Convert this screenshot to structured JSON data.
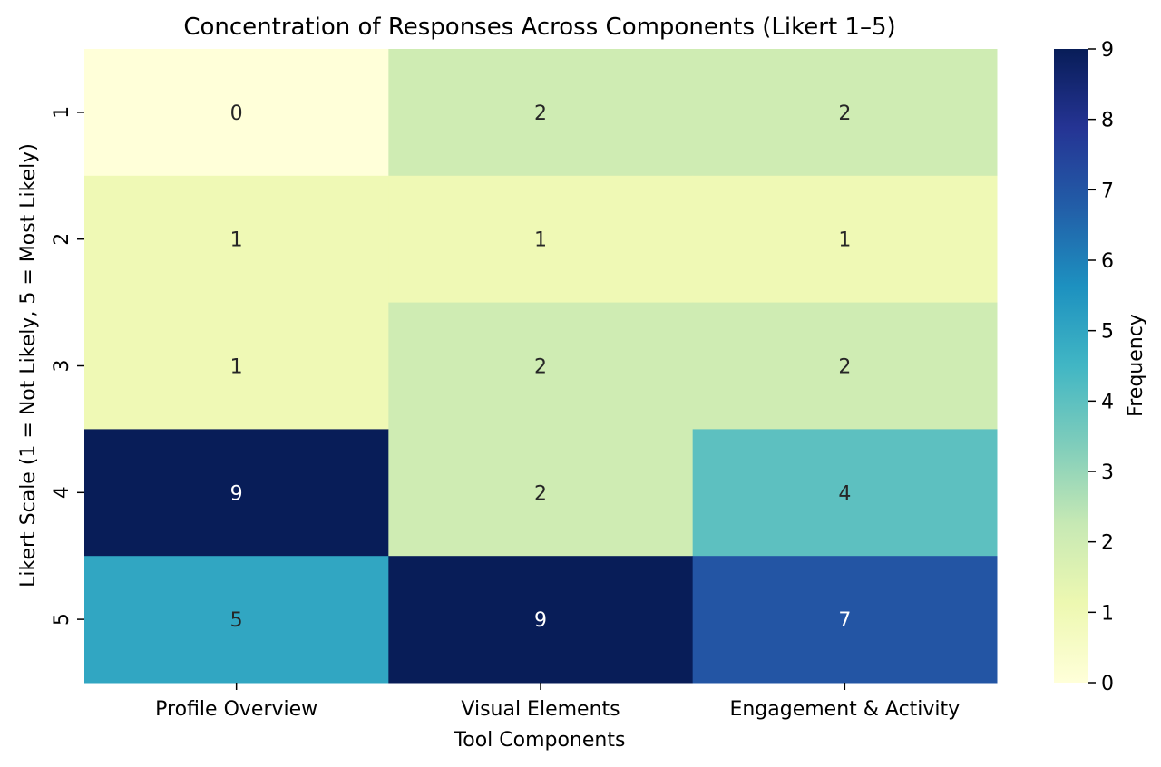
{
  "chart_data": {
    "type": "heatmap",
    "title": "Concentration of Responses Across Components (Likert 1–5)",
    "xlabel": "Tool Components",
    "ylabel": "Likert Scale (1 = Not Likely, 5 = Most Likely)",
    "x_categories": [
      "Profile Overview",
      "Visual Elements",
      "Engagement & Activity"
    ],
    "y_categories": [
      "1",
      "2",
      "3",
      "4",
      "5"
    ],
    "values": [
      [
        0,
        2,
        2
      ],
      [
        1,
        1,
        1
      ],
      [
        1,
        2,
        2
      ],
      [
        9,
        2,
        4
      ],
      [
        5,
        9,
        7
      ]
    ],
    "annotations": [
      [
        "0",
        "2",
        "2"
      ],
      [
        "1",
        "1",
        "1"
      ],
      [
        "1",
        "2",
        "2"
      ],
      [
        "9",
        "2",
        "4"
      ],
      [
        "5",
        "9",
        "7"
      ]
    ],
    "colorbar": {
      "label": "Frequency",
      "vmin": 0,
      "vmax": 9,
      "ticks": [
        "0",
        "1",
        "2",
        "3",
        "4",
        "5",
        "6",
        "7",
        "8",
        "9"
      ],
      "colormap": "YlGnBu",
      "stops": [
        "#ffffd9",
        "#edf8b1",
        "#c7e9b4",
        "#7fcdbb",
        "#41b6c4",
        "#1d91c0",
        "#225ea8",
        "#253494",
        "#081d58"
      ]
    },
    "grid": false
  }
}
